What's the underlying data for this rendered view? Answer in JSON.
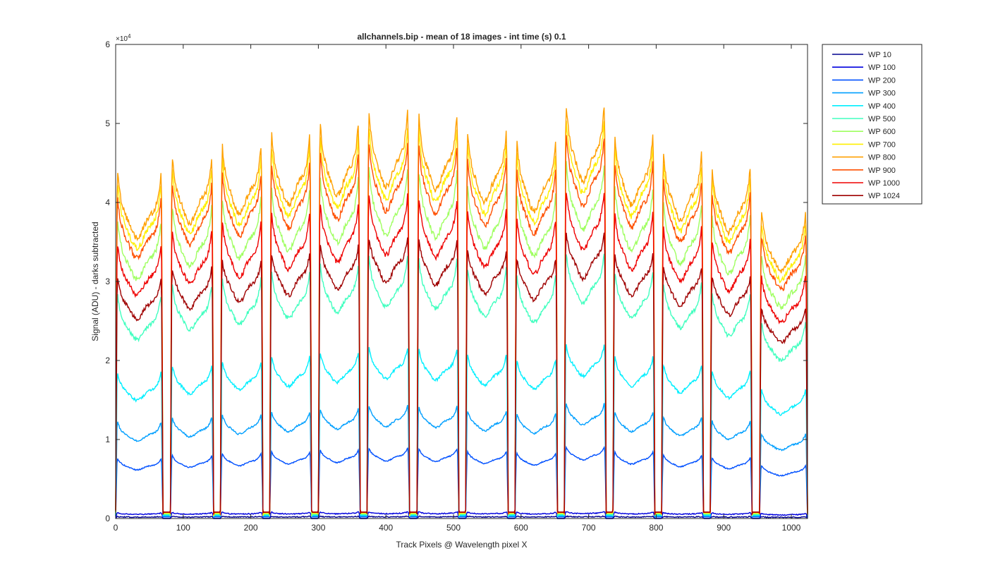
{
  "chart_data": {
    "type": "line",
    "title": "allchannels.bip - mean of 18 images - int time (s) 0.1",
    "xlabel": "Track Pixels @ Wavelength pixel X",
    "ylabel": "Signal (ADU) - darks subtracted",
    "y_exponent_label": "×10",
    "y_exponent_power": "4",
    "xlim": [
      0,
      1024
    ],
    "ylim": [
      0,
      6
    ],
    "y_scale_factor": 10000,
    "xticks": [
      0,
      100,
      200,
      300,
      400,
      500,
      600,
      700,
      800,
      900,
      1000
    ],
    "xtick_labels": [
      "0",
      "100",
      "200",
      "300",
      "400",
      "500",
      "600",
      "700",
      "800",
      "900",
      "1000"
    ],
    "yticks": [
      0,
      1,
      2,
      3,
      4,
      5,
      6
    ],
    "ytick_labels": [
      "0",
      "1",
      "2",
      "3",
      "4",
      "5",
      "6"
    ],
    "grid": false,
    "legend_position": "outside-top-right",
    "shape": {
      "track_left_edges": [
        0,
        81,
        155,
        228,
        300,
        372,
        446,
        518,
        591,
        664,
        736,
        808,
        880,
        953
      ],
      "track_right_edges": [
        70,
        145,
        218,
        290,
        362,
        435,
        508,
        581,
        654,
        726,
        798,
        870,
        942,
        1024
      ],
      "track_gain": [
        0.93,
        0.98,
        1.01,
        1.04,
        1.07,
        1.1,
        1.09,
        1.05,
        1.02,
        1.12,
        1.04,
        0.99,
        0.95,
        0.82
      ]
    },
    "series": [
      {
        "name": "WP 10",
        "color": "#00008f",
        "level": 0.02,
        "peak": 0.03,
        "valley": 0.0
      },
      {
        "name": "WP 100",
        "color": "#0000df",
        "level": 0.06,
        "peak": 0.09,
        "valley": 0.0
      },
      {
        "name": "WP 200",
        "color": "#0050ff",
        "level": 0.72,
        "peak": 0.88,
        "valley": 0.02
      },
      {
        "name": "WP 300",
        "color": "#009fff",
        "level": 1.15,
        "peak": 1.42,
        "valley": 0.03
      },
      {
        "name": "WP 400",
        "color": "#00efff",
        "level": 1.75,
        "peak": 2.15,
        "valley": 0.04
      },
      {
        "name": "WP 500",
        "color": "#40ffbf",
        "level": 2.65,
        "peak": 3.3,
        "valley": 0.05
      },
      {
        "name": "WP 600",
        "color": "#9fff60",
        "level": 3.55,
        "peak": 4.4,
        "valley": 0.06
      },
      {
        "name": "WP 700",
        "color": "#ffef00",
        "level": 4.0,
        "peak": 4.95,
        "valley": 0.07
      },
      {
        "name": "WP 800",
        "color": "#ffa000",
        "level": 4.15,
        "peak": 5.1,
        "valley": 0.08
      },
      {
        "name": "WP 900",
        "color": "#ff5000",
        "level": 3.85,
        "peak": 4.7,
        "valley": 0.08
      },
      {
        "name": "WP 1000",
        "color": "#ef0000",
        "level": 3.3,
        "peak": 4.05,
        "valley": 0.08
      },
      {
        "name": "WP 1024",
        "color": "#9f0000",
        "level": 2.95,
        "peak": 3.45,
        "valley": 0.08
      }
    ]
  }
}
